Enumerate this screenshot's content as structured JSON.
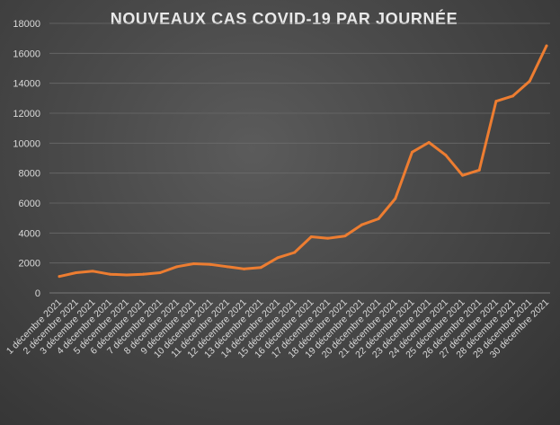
{
  "chart_data": {
    "type": "line",
    "title": "NOUVEAUX CAS COVID-19 PAR JOURNÉE",
    "xlabel": "",
    "ylabel": "",
    "ylim": [
      0,
      18000
    ],
    "yticks": [
      "0",
      "2000",
      "4000",
      "6000",
      "8000",
      "10000",
      "12000",
      "14000",
      "16000",
      "18000"
    ],
    "grid": true,
    "legend": "none",
    "line_color": "#ed7d31",
    "categories": [
      "1 décembre 2021",
      "2 décembre 2021",
      "3 décembre 2021",
      "4 décembre 2021",
      "5 décembre 2021",
      "6 décembre 2021",
      "7 décembre 2021",
      "8 décembre 2021",
      "9 décembre 2021",
      "10 décembre 2021",
      "11 décembre 2021",
      "12 décembre 2021",
      "13 décembre 2021",
      "14 décembre 2021",
      "15 décembre 2021",
      "16 décembre 2021",
      "17 décembre 2021",
      "18 décembre 2021",
      "19 décembre 2021",
      "20 décembre 2021",
      "21 décembre 2021",
      "22 décembre 2021",
      "23 décembre 2021",
      "24 décembre 2021",
      "25 décembre 2021",
      "26 décembre 2021",
      "27 décembre 2021",
      "28 décembre 2021",
      "29 décembre 2021",
      "30 décembre 2021"
    ],
    "series": [
      {
        "values": [
          1100,
          1350,
          1450,
          1250,
          1200,
          1250,
          1350,
          1750,
          1950,
          1900,
          1750,
          1600,
          1700,
          2350,
          2700,
          3750,
          3650,
          3800,
          4550,
          4950,
          6300,
          9400,
          10050,
          9200,
          7850,
          8200,
          12800,
          13150,
          14150,
          16500
        ]
      }
    ]
  }
}
